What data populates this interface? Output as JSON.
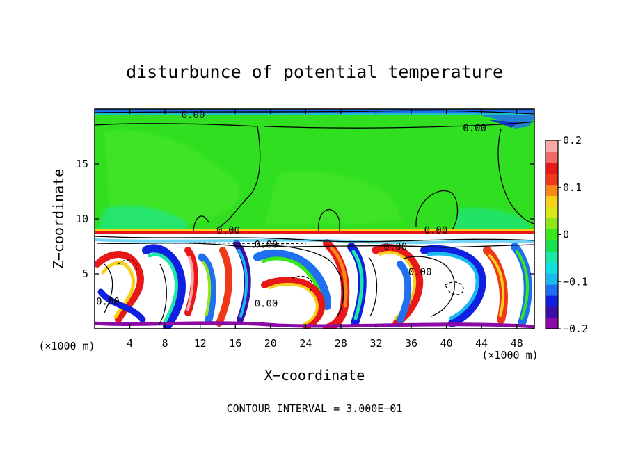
{
  "chart_data": {
    "type": "heatmap",
    "title": "disturbunce of potential temperature",
    "xlabel": "X−coordinate",
    "ylabel": "Z−coordinate",
    "x_unit_left": "(×1000 m)",
    "x_unit_right": "(×1000 m)",
    "footer": "CONTOUR INTERVAL = 3.000E−01",
    "xlim": [
      0,
      50
    ],
    "ylim": [
      0,
      20
    ],
    "x_ticks": [
      4,
      8,
      12,
      16,
      20,
      24,
      28,
      32,
      36,
      40,
      44,
      48
    ],
    "y_ticks": [
      5,
      10,
      15
    ],
    "colorbar": {
      "min": -0.2,
      "max": 0.2,
      "tick_values": [
        0.2,
        0.1,
        0,
        -0.1,
        -0.2
      ],
      "tick_labels": [
        "0.2",
        "0.1",
        "0",
        "−0.1",
        "−0.2"
      ],
      "colors": [
        "#8b0aa5",
        "#3a0fa8",
        "#1020e0",
        "#1e70f0",
        "#18b8f0",
        "#10e0e0",
        "#18e8a8",
        "#18e050",
        "#38e818",
        "#8ee818",
        "#d8e818",
        "#f8d018",
        "#f88818",
        "#f03818",
        "#e81818",
        "#f06868",
        "#f8a8a8"
      ]
    },
    "contour_labels": [
      {
        "text": "0.00",
        "x": 11.2,
        "z": 19.5
      },
      {
        "text": "0.00",
        "x": 43.2,
        "z": 18.3
      },
      {
        "text": "0.00",
        "x": 15.2,
        "z": 9.0
      },
      {
        "text": "0.00",
        "x": 38.8,
        "z": 9.0
      },
      {
        "text": "0.00",
        "x": 19.5,
        "z": 7.7
      },
      {
        "text": "0.00",
        "x": 34.2,
        "z": 7.5
      },
      {
        "text": "0.00",
        "x": 37.0,
        "z": 5.2
      },
      {
        "text": "0.00",
        "x": 1.5,
        "z": 2.5
      },
      {
        "text": "0.00",
        "x": 19.5,
        "z": 2.3
      }
    ]
  }
}
